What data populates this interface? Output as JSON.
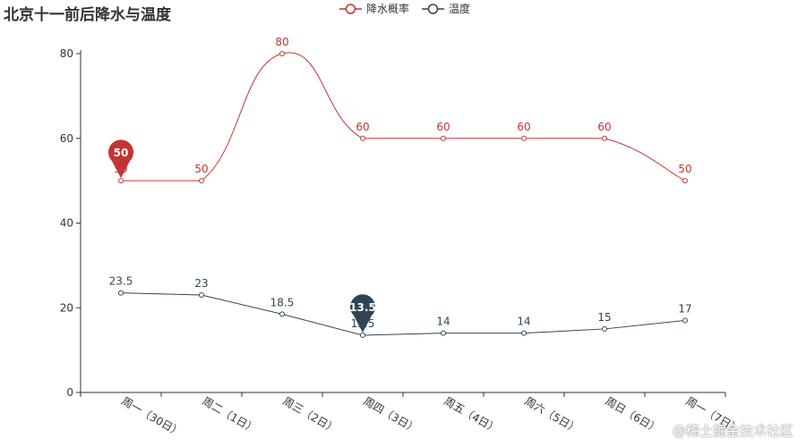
{
  "chart_data": {
    "type": "line",
    "title": "北京十一前后降水与温度",
    "categories": [
      "周一（30日）",
      "周二（1日）",
      "周三（2日）",
      "周四（3日）",
      "周五（4日）",
      "周六（5日）",
      "周日（6日）",
      "周一（7日）"
    ],
    "ylim": [
      0,
      80
    ],
    "yticks": [
      0,
      20,
      40,
      60,
      80
    ],
    "grid": false,
    "legend_position": "top-center",
    "series": [
      {
        "name": "降水概率",
        "values": [
          50,
          50,
          80,
          60,
          60,
          60,
          60,
          50
        ],
        "color": "#c23531",
        "smooth": true,
        "pin": {
          "index": 0,
          "label": "50"
        }
      },
      {
        "name": "温度",
        "values": [
          23.5,
          23,
          18.5,
          13.5,
          14,
          14,
          15,
          17
        ],
        "color": "#2f4554",
        "smooth": false,
        "pin": {
          "index": 3,
          "label": "13.5"
        }
      }
    ]
  },
  "watermark": "@稀土掘金技术社区"
}
